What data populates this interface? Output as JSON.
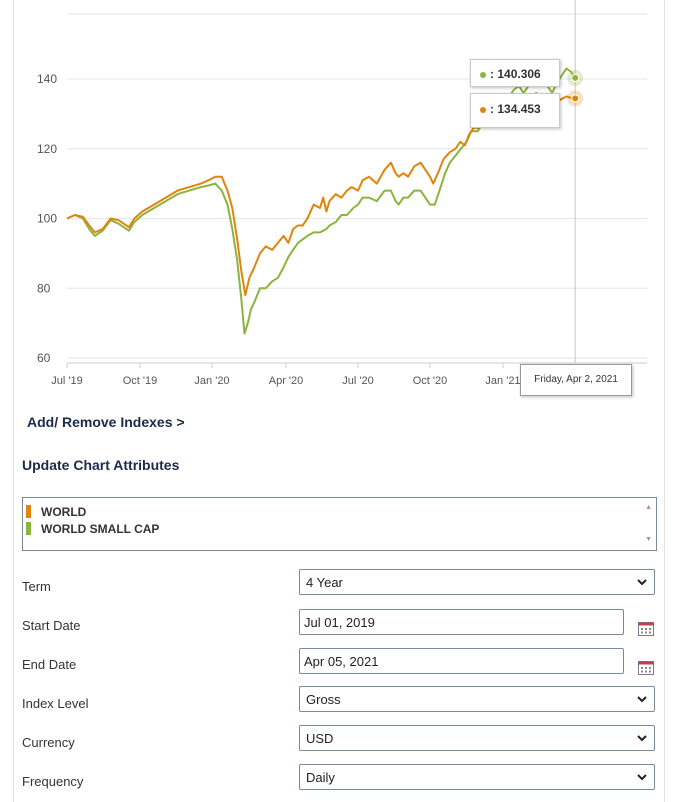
{
  "chart_data": {
    "type": "line",
    "x_tick_labels": [
      "Jul '19",
      "Oct '19",
      "Jan '20",
      "Apr '20",
      "Jul '20",
      "Oct '20",
      "Jan '21"
    ],
    "y_ticks": [
      60,
      80,
      100,
      120,
      140
    ],
    "ylim": [
      60,
      150
    ],
    "x_range": [
      "2019-07-01",
      "2021-04-05"
    ],
    "x_ticks_days": [
      0,
      92,
      184,
      275,
      366,
      458,
      550
    ],
    "x_max_days": 644,
    "series": [
      {
        "name": "WORLD",
        "color": "#e0850c",
        "points": [
          [
            0,
            100
          ],
          [
            10,
            101
          ],
          [
            20,
            100.5
          ],
          [
            28,
            98
          ],
          [
            35,
            96
          ],
          [
            45,
            97
          ],
          [
            55,
            100
          ],
          [
            65,
            99.5
          ],
          [
            78,
            97.5
          ],
          [
            85,
            100
          ],
          [
            95,
            102
          ],
          [
            110,
            104
          ],
          [
            125,
            106
          ],
          [
            140,
            108
          ],
          [
            155,
            109
          ],
          [
            170,
            110
          ],
          [
            180,
            111
          ],
          [
            188,
            112
          ],
          [
            196,
            112
          ],
          [
            203,
            108
          ],
          [
            209,
            103
          ],
          [
            215,
            94
          ],
          [
            220,
            85
          ],
          [
            225,
            78
          ],
          [
            230,
            83
          ],
          [
            236,
            86
          ],
          [
            243,
            90
          ],
          [
            250,
            92
          ],
          [
            258,
            91
          ],
          [
            265,
            93
          ],
          [
            272,
            95
          ],
          [
            278,
            93
          ],
          [
            284,
            97
          ],
          [
            290,
            98
          ],
          [
            296,
            98
          ],
          [
            302,
            100
          ],
          [
            310,
            104
          ],
          [
            318,
            103
          ],
          [
            322,
            106
          ],
          [
            326,
            102
          ],
          [
            330,
            105
          ],
          [
            338,
            107
          ],
          [
            345,
            106
          ],
          [
            352,
            108
          ],
          [
            358,
            109
          ],
          [
            366,
            108
          ],
          [
            372,
            111
          ],
          [
            380,
            112
          ],
          [
            390,
            110
          ],
          [
            400,
            114
          ],
          [
            408,
            116
          ],
          [
            414,
            113
          ],
          [
            418,
            112
          ],
          [
            424,
            113
          ],
          [
            430,
            112
          ],
          [
            438,
            115
          ],
          [
            446,
            116
          ],
          [
            452,
            114
          ],
          [
            458,
            112
          ],
          [
            462,
            110
          ],
          [
            468,
            113
          ],
          [
            475,
            117
          ],
          [
            483,
            119
          ],
          [
            490,
            120
          ],
          [
            496,
            122
          ],
          [
            502,
            121
          ],
          [
            507,
            124
          ],
          [
            513,
            126
          ],
          [
            520,
            126
          ],
          [
            530,
            128
          ],
          [
            538,
            128
          ],
          [
            544,
            129
          ],
          [
            550,
            131
          ],
          [
            556,
            131
          ],
          [
            562,
            133
          ],
          [
            568,
            134
          ],
          [
            575,
            132
          ],
          [
            580,
            134
          ],
          [
            586,
            135
          ],
          [
            592,
            136
          ],
          [
            598,
            134
          ],
          [
            604,
            132
          ],
          [
            610,
            133
          ],
          [
            616,
            135
          ],
          [
            622,
            134
          ],
          [
            630,
            135
          ],
          [
            637,
            134.5
          ],
          [
            641,
            134.453
          ]
        ]
      },
      {
        "name": "WORLD SMALL CAP",
        "color": "#8cb43c",
        "points": [
          [
            0,
            100
          ],
          [
            10,
            101
          ],
          [
            20,
            100
          ],
          [
            28,
            97
          ],
          [
            35,
            95
          ],
          [
            45,
            96.5
          ],
          [
            55,
            99.5
          ],
          [
            65,
            98.5
          ],
          [
            78,
            96.5
          ],
          [
            85,
            99
          ],
          [
            95,
            101
          ],
          [
            110,
            103
          ],
          [
            125,
            105
          ],
          [
            140,
            107
          ],
          [
            155,
            108
          ],
          [
            170,
            109
          ],
          [
            180,
            109.5
          ],
          [
            188,
            110
          ],
          [
            196,
            108
          ],
          [
            203,
            104
          ],
          [
            209,
            97
          ],
          [
            215,
            88
          ],
          [
            220,
            77
          ],
          [
            224,
            67
          ],
          [
            228,
            70
          ],
          [
            232,
            74
          ],
          [
            236,
            76
          ],
          [
            243,
            80
          ],
          [
            250,
            80
          ],
          [
            258,
            82
          ],
          [
            265,
            83
          ],
          [
            272,
            86
          ],
          [
            278,
            89
          ],
          [
            284,
            91
          ],
          [
            290,
            93
          ],
          [
            296,
            94
          ],
          [
            302,
            95
          ],
          [
            310,
            96
          ],
          [
            318,
            96
          ],
          [
            326,
            97
          ],
          [
            330,
            98
          ],
          [
            338,
            99
          ],
          [
            345,
            101
          ],
          [
            352,
            101
          ],
          [
            360,
            103
          ],
          [
            366,
            104
          ],
          [
            372,
            106
          ],
          [
            380,
            106
          ],
          [
            390,
            105
          ],
          [
            400,
            108
          ],
          [
            408,
            108
          ],
          [
            414,
            105
          ],
          [
            418,
            104
          ],
          [
            424,
            106
          ],
          [
            430,
            106
          ],
          [
            438,
            108
          ],
          [
            446,
            108
          ],
          [
            452,
            106
          ],
          [
            458,
            104
          ],
          [
            464,
            104
          ],
          [
            470,
            108
          ],
          [
            477,
            113
          ],
          [
            483,
            116
          ],
          [
            490,
            118
          ],
          [
            497,
            120
          ],
          [
            504,
            122
          ],
          [
            510,
            125
          ],
          [
            518,
            125
          ],
          [
            526,
            128
          ],
          [
            534,
            131
          ],
          [
            540,
            131
          ],
          [
            546,
            132
          ],
          [
            552,
            133
          ],
          [
            558,
            135
          ],
          [
            564,
            137
          ],
          [
            570,
            138
          ],
          [
            576,
            136
          ],
          [
            582,
            138
          ],
          [
            588,
            140
          ],
          [
            594,
            141
          ],
          [
            600,
            142
          ],
          [
            606,
            138
          ],
          [
            612,
            136
          ],
          [
            618,
            139
          ],
          [
            624,
            141
          ],
          [
            630,
            143
          ],
          [
            636,
            142
          ],
          [
            641,
            140.306
          ]
        ]
      }
    ],
    "tooltip_values": [
      "140.306",
      "134.453"
    ],
    "hover_date": "Friday, Apr 2, 2021"
  },
  "controls": {
    "add_remove_link": "Add/ Remove Indexes >",
    "section_title": "Update Chart Attributes",
    "legend_items": [
      "WORLD",
      "WORLD SMALL CAP"
    ],
    "fields": {
      "term": {
        "label": "Term",
        "value": "4 Year"
      },
      "start_date": {
        "label": "Start Date",
        "value": "Jul 01, 2019"
      },
      "end_date": {
        "label": "End Date",
        "value": "Apr 05, 2021"
      },
      "index_level": {
        "label": "Index Level",
        "value": "Gross"
      },
      "currency": {
        "label": "Currency",
        "value": "USD"
      },
      "frequency": {
        "label": "Frequency",
        "value": "Daily"
      }
    }
  },
  "colors": {
    "world": "#e0850c",
    "small_cap": "#8cb43c",
    "title": "#1b2b4b"
  }
}
